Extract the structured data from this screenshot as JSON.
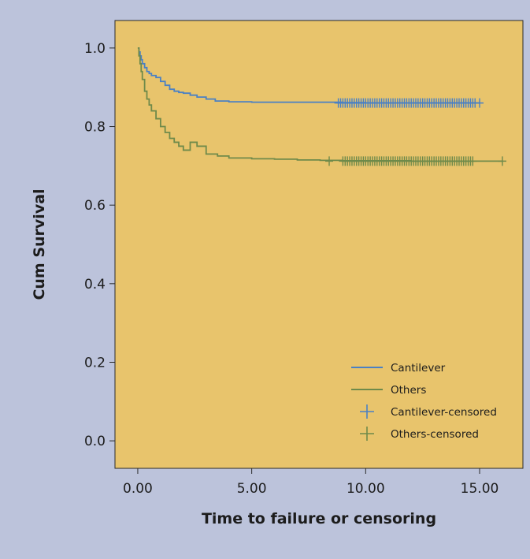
{
  "chart_data": {
    "type": "line",
    "xlabel": "Time to failure or censoring",
    "ylabel": "Cum Survival",
    "xlim": [
      -1.0,
      16.9
    ],
    "ylim": [
      -0.07,
      1.07
    ],
    "x_ticks": [
      0,
      5,
      10,
      15
    ],
    "x_tick_labels": [
      "0.00",
      "5.00",
      "10.00",
      "15.00"
    ],
    "y_ticks": [
      0,
      0.2,
      0.4,
      0.6,
      0.8,
      1.0
    ],
    "y_tick_labels": [
      "0.0",
      "0.2",
      "0.4",
      "0.6",
      "0.8",
      "1.0"
    ],
    "grid": false,
    "legend_position": "bottom-right",
    "plot_background": "#e8c46c",
    "page_background": "#bcc3db",
    "series": [
      {
        "name": "Cantilever",
        "color": "#4a80c4",
        "x": [
          0,
          0.05,
          0.1,
          0.15,
          0.2,
          0.3,
          0.4,
          0.5,
          0.6,
          0.8,
          1.0,
          1.2,
          1.4,
          1.6,
          1.8,
          2.0,
          2.3,
          2.6,
          3.0,
          3.4,
          4.0,
          5.0,
          6.0,
          8.0,
          9.0,
          10.0,
          12.0,
          15.0
        ],
        "y": [
          1.0,
          0.99,
          0.98,
          0.97,
          0.96,
          0.95,
          0.94,
          0.935,
          0.93,
          0.925,
          0.915,
          0.905,
          0.895,
          0.89,
          0.887,
          0.885,
          0.88,
          0.875,
          0.87,
          0.865,
          0.863,
          0.862,
          0.862,
          0.862,
          0.861,
          0.86,
          0.86,
          0.86
        ]
      },
      {
        "name": "Others",
        "color": "#6f8a4a",
        "x": [
          0,
          0.05,
          0.1,
          0.15,
          0.2,
          0.3,
          0.4,
          0.5,
          0.6,
          0.8,
          1.0,
          1.2,
          1.4,
          1.6,
          1.8,
          2.0,
          2.3,
          2.6,
          3.0,
          3.5,
          4.0,
          5.0,
          6.0,
          7.0,
          8.0,
          9.0,
          12.0,
          16.0
        ],
        "y": [
          1.0,
          0.98,
          0.96,
          0.94,
          0.92,
          0.89,
          0.87,
          0.855,
          0.84,
          0.82,
          0.8,
          0.785,
          0.77,
          0.76,
          0.75,
          0.74,
          0.76,
          0.75,
          0.73,
          0.725,
          0.72,
          0.718,
          0.717,
          0.715,
          0.714,
          0.713,
          0.712,
          0.712
        ]
      }
    ],
    "censored": [
      {
        "name": "Cantilever-censored",
        "color": "#4a80c4",
        "y": 0.86,
        "x": [
          8.8,
          8.9,
          9.0,
          9.1,
          9.2,
          9.3,
          9.4,
          9.5,
          9.6,
          9.7,
          9.8,
          9.9,
          10.0,
          10.1,
          10.2,
          10.3,
          10.4,
          10.5,
          10.6,
          10.7,
          10.8,
          10.9,
          11.0,
          11.1,
          11.2,
          11.3,
          11.4,
          11.5,
          11.6,
          11.7,
          11.8,
          11.9,
          12.0,
          12.1,
          12.2,
          12.3,
          12.4,
          12.5,
          12.6,
          12.7,
          12.8,
          12.9,
          13.0,
          13.1,
          13.2,
          13.3,
          13.4,
          13.5,
          13.6,
          13.7,
          13.8,
          13.9,
          14.0,
          14.1,
          14.2,
          14.3,
          14.4,
          14.5,
          14.6,
          14.7,
          14.8,
          15.0
        ]
      },
      {
        "name": "Others-censored",
        "color": "#6f8a4a",
        "y": 0.712,
        "x": [
          8.4,
          9.0,
          9.1,
          9.2,
          9.3,
          9.4,
          9.5,
          9.6,
          9.7,
          9.8,
          9.9,
          10.0,
          10.1,
          10.2,
          10.3,
          10.4,
          10.5,
          10.6,
          10.7,
          10.8,
          10.9,
          11.0,
          11.1,
          11.2,
          11.3,
          11.4,
          11.5,
          11.6,
          11.7,
          11.8,
          11.9,
          12.0,
          12.1,
          12.2,
          12.3,
          12.4,
          12.5,
          12.6,
          12.7,
          12.8,
          12.9,
          13.0,
          13.1,
          13.2,
          13.3,
          13.4,
          13.5,
          13.6,
          13.7,
          13.8,
          13.9,
          14.0,
          14.1,
          14.2,
          14.3,
          14.4,
          14.5,
          14.6,
          14.7,
          16.0
        ]
      }
    ],
    "legend": [
      {
        "label": "Cantilever",
        "marker": "line",
        "color": "#4a80c4"
      },
      {
        "label": "Others",
        "marker": "line",
        "color": "#6f8a4a"
      },
      {
        "label": "Cantilever-censored",
        "marker": "plus",
        "color": "#4a80c4"
      },
      {
        "label": "Others-censored",
        "marker": "plus",
        "color": "#6f8a4a"
      }
    ]
  }
}
